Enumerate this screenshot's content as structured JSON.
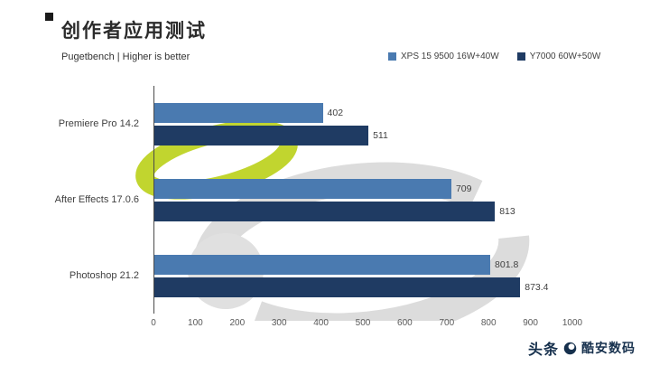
{
  "title": "创作者应用测试",
  "subtitle": "Pugetbench | Higher is better",
  "legend": [
    {
      "label": "XPS 15 9500 16W+40W",
      "color": "#4a7ab0"
    },
    {
      "label": "Y7000 60W+50W",
      "color": "#1f3b63"
    }
  ],
  "footer": {
    "brand_left": "头条",
    "brand_right": "酷安数码"
  },
  "colors": {
    "series1": "#4a7ab0",
    "series2": "#1f3b63",
    "watermark_green": "#c1d52f",
    "watermark_gray": "#dcdcdc"
  },
  "chart_data": {
    "type": "bar",
    "orientation": "horizontal",
    "title": "创作者应用测试",
    "subtitle": "Pugetbench | Higher is better",
    "categories": [
      "Premiere Pro 14.2",
      "After Effects 17.0.6",
      "Photoshop 21.2"
    ],
    "series": [
      {
        "name": "XPS 15 9500 16W+40W",
        "color": "#4a7ab0",
        "values": [
          402,
          709,
          801.8
        ]
      },
      {
        "name": "Y7000 60W+50W",
        "color": "#1f3b63",
        "values": [
          511,
          813,
          873.4
        ]
      }
    ],
    "xlim": [
      0,
      1000
    ],
    "xticks": [
      0,
      100,
      200,
      300,
      400,
      500,
      600,
      700,
      800,
      900,
      1000
    ],
    "xlabel": "",
    "ylabel": "",
    "grid": false,
    "legend_position": "top-right"
  }
}
